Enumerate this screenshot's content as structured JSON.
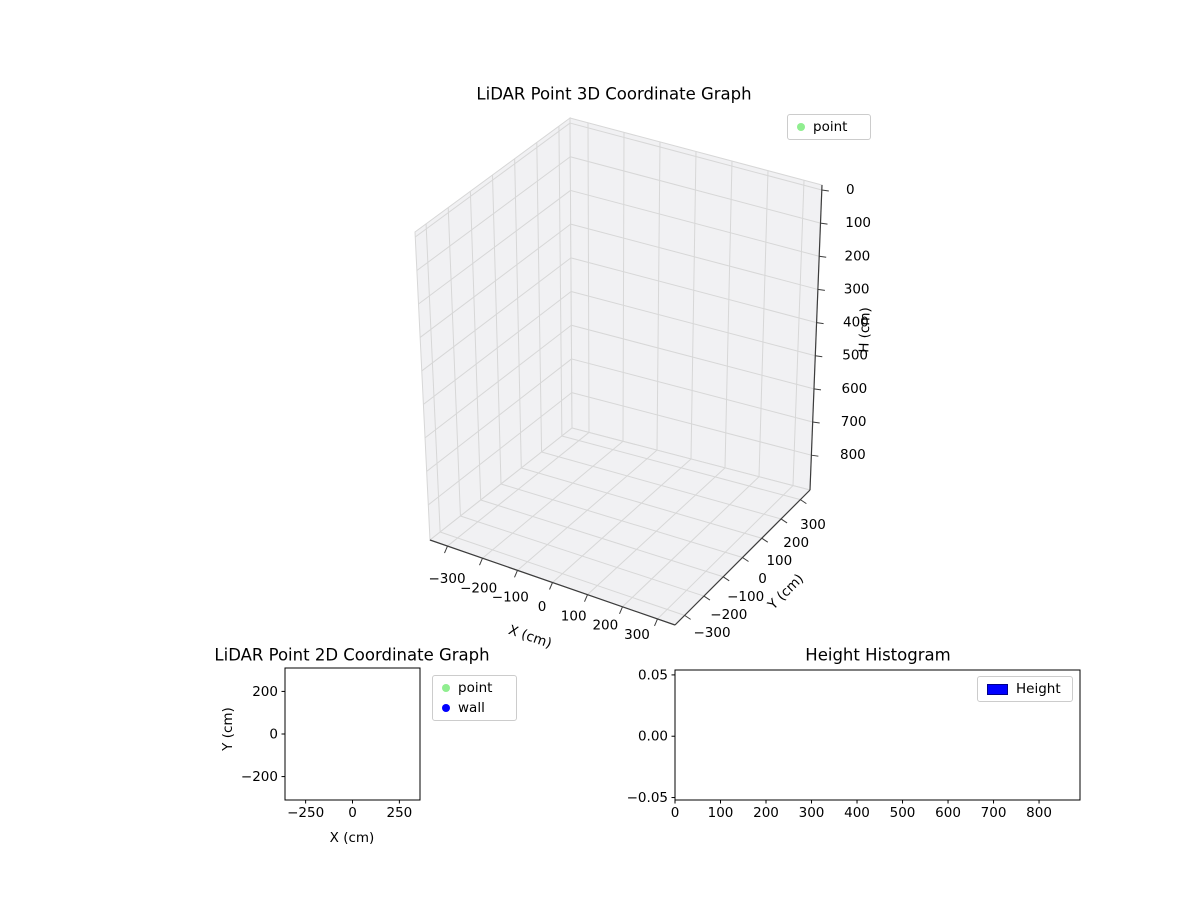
{
  "figure": {
    "background": "#ffffff"
  },
  "chart_data": [
    {
      "id": "lidar-3d",
      "type": "scatter",
      "projection": "3d",
      "title": "LiDAR Point 3D Coordinate Graph",
      "xlabel": "X (cm)",
      "ylabel": "Y (cm)",
      "zlabel": "H (cm)",
      "x_tick_labels": [
        "−300",
        "−200",
        "−100",
        "0",
        "100",
        "200",
        "300"
      ],
      "y_tick_labels": [
        "−300",
        "−200",
        "−100",
        "0",
        "100",
        "200",
        "300"
      ],
      "z_tick_labels": [
        "0",
        "100",
        "200",
        "300",
        "400",
        "500",
        "600",
        "700",
        "800"
      ],
      "xlim": [
        -350,
        350
      ],
      "ylim": [
        -350,
        350
      ],
      "zlim": [
        -15,
        905
      ],
      "z_axis_inverted": true,
      "grid": true,
      "pane_color": "#f1f1f3",
      "grid_color": "#d7d7d7",
      "legend": {
        "location": "upper right",
        "entries": [
          {
            "label": "point",
            "marker": "dot",
            "color": "#90ee90"
          }
        ]
      },
      "series": [
        {
          "name": "point",
          "points": []
        }
      ]
    },
    {
      "id": "lidar-2d",
      "type": "scatter",
      "title": "LiDAR Point 2D Coordinate Graph",
      "xlabel": "X (cm)",
      "ylabel": "Y (cm)",
      "x_tick_labels": [
        "−250",
        "0",
        "250"
      ],
      "y_tick_labels": [
        "−200",
        "0",
        "200"
      ],
      "xlim": [
        -360,
        360
      ],
      "ylim": [
        -310,
        310
      ],
      "grid": false,
      "legend": {
        "location": "upper right outside",
        "entries": [
          {
            "label": "point",
            "marker": "dot",
            "color": "#90ee90"
          },
          {
            "label": "wall",
            "marker": "dot",
            "color": "#0000ff"
          }
        ]
      },
      "series": [
        {
          "name": "point",
          "points": []
        },
        {
          "name": "wall",
          "points": []
        }
      ]
    },
    {
      "id": "height-histogram",
      "type": "bar",
      "title": "Height Histogram",
      "xlabel": "",
      "ylabel": "",
      "x_tick_labels": [
        "0",
        "100",
        "200",
        "300",
        "400",
        "500",
        "600",
        "700",
        "800"
      ],
      "y_tick_labels": [
        "−0.05",
        "0.00",
        "0.05"
      ],
      "xlim": [
        0,
        890
      ],
      "ylim": [
        -0.052,
        0.054
      ],
      "grid": false,
      "legend": {
        "location": "upper right",
        "entries": [
          {
            "label": "Height",
            "marker": "patch",
            "color": "#0000ff"
          }
        ]
      },
      "values": []
    }
  ]
}
